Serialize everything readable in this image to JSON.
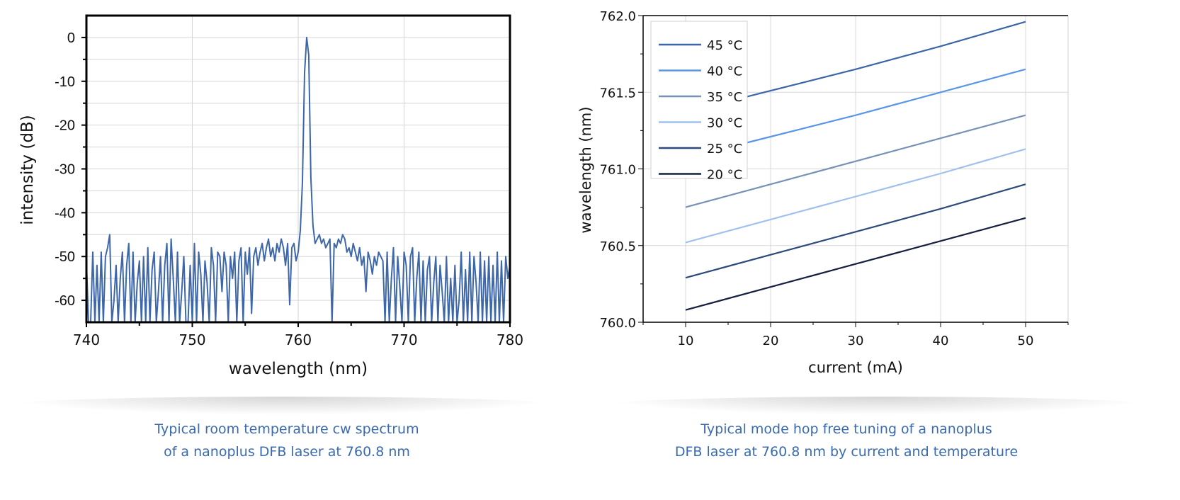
{
  "chart_data": [
    {
      "type": "line",
      "title": "",
      "xlabel": "wavelength (nm)",
      "ylabel": "intensity (dB)",
      "xlim": [
        740,
        780
      ],
      "ylim": [
        -65,
        5
      ],
      "xticks": [
        "740",
        "750",
        "760",
        "770",
        "780"
      ],
      "yticks": [
        "0",
        "-10",
        "-20",
        "-30",
        "-40",
        "-50",
        "-60"
      ],
      "grid": true,
      "series": [
        {
          "name": "spectrum",
          "color": "#3d67a8",
          "x_start": 740,
          "x_step": 0.2,
          "values": [
            -51,
            -65,
            -65,
            -49,
            -65,
            -52,
            -65,
            -49,
            -65,
            -50,
            -48,
            -45,
            -65,
            -60,
            -52,
            -65,
            -55,
            -49,
            -65,
            -52,
            -47,
            -65,
            -49,
            -65,
            -56,
            -51,
            -65,
            -50,
            -65,
            -48,
            -65,
            -53,
            -49,
            -65,
            -58,
            -50,
            -65,
            -52,
            -47,
            -65,
            -46,
            -55,
            -65,
            -49,
            -65,
            -58,
            -50,
            -65,
            -65,
            -52,
            -65,
            -47,
            -65,
            -49,
            -54,
            -65,
            -51,
            -56,
            -65,
            -48,
            -52,
            -65,
            -49,
            -50,
            -58,
            -49,
            -52,
            -65,
            -50,
            -55,
            -49,
            -65,
            -51,
            -48,
            -65,
            -49,
            -54,
            -48,
            -63,
            -50,
            -48,
            -52,
            -49,
            -47,
            -51,
            -48,
            -46,
            -50,
            -48,
            -51,
            -47,
            -49,
            -46,
            -48,
            -52,
            -47,
            -61,
            -48,
            -47,
            -51,
            -49,
            -44,
            -33,
            -8,
            0,
            -4,
            -32,
            -43,
            -47,
            -46,
            -45,
            -47,
            -46,
            -48,
            -47,
            -46,
            -65,
            -47,
            -48,
            -46,
            -47,
            -45,
            -46,
            -49,
            -48,
            -50,
            -47,
            -49,
            -51,
            -48,
            -52,
            -50,
            -58,
            -49,
            -51,
            -54,
            -50,
            -52,
            -49,
            -50,
            -51,
            -65,
            -49,
            -65,
            -55,
            -48,
            -65,
            -50,
            -57,
            -65,
            -49,
            -52,
            -65,
            -50,
            -48,
            -65,
            -55,
            -49,
            -65,
            -51,
            -65,
            -53,
            -50,
            -65,
            -56,
            -50,
            -65,
            -52,
            -58,
            -65,
            -50,
            -65,
            -55,
            -65,
            -52,
            -65,
            -60,
            -49,
            -65,
            -53,
            -65,
            -49,
            -65,
            -50,
            -56,
            -65,
            -49,
            -65,
            -51,
            -65,
            -50,
            -65,
            -52,
            -65,
            -49,
            -65,
            -51,
            -65,
            -50,
            -55,
            -52
          ]
        }
      ],
      "caption": [
        "Typical room temperature cw spectrum",
        "of a nanoplus DFB laser at 760.8 nm"
      ]
    },
    {
      "type": "line",
      "title": "",
      "xlabel": "current (mA)",
      "ylabel": "wavelength (nm)",
      "xlim": [
        5,
        55
      ],
      "ylim": [
        760.0,
        762.0
      ],
      "xticks": [
        "10",
        "20",
        "30",
        "40",
        "50"
      ],
      "yticks": [
        "760.0",
        "760.5",
        "761.0",
        "761.5",
        "762.0"
      ],
      "grid": true,
      "legend_position": "top-left",
      "x": [
        10,
        20,
        30,
        40,
        50
      ],
      "series": [
        {
          "name": "45 °C",
          "color": "#3a66a8",
          "values": [
            761.37,
            761.51,
            761.65,
            761.8,
            761.96
          ]
        },
        {
          "name": "40 °C",
          "color": "#5a96e6",
          "values": [
            761.07,
            761.21,
            761.35,
            761.5,
            761.65
          ]
        },
        {
          "name": "35 °C",
          "color": "#7891b6",
          "values": [
            760.75,
            760.9,
            761.05,
            761.2,
            761.35
          ]
        },
        {
          "name": "30 °C",
          "color": "#a0c0ee",
          "values": [
            760.52,
            760.67,
            760.82,
            760.97,
            761.13
          ]
        },
        {
          "name": "25 °C",
          "color": "#2c4a7a",
          "values": [
            760.29,
            760.44,
            760.59,
            760.74,
            760.9
          ]
        },
        {
          "name": "20 °C",
          "color": "#15203f",
          "values": [
            760.08,
            760.23,
            760.38,
            760.53,
            760.68
          ]
        }
      ],
      "caption": [
        "Typical mode hop free tuning of a nanoplus",
        "DFB laser at 760.8 nm by current and temperature"
      ]
    }
  ]
}
